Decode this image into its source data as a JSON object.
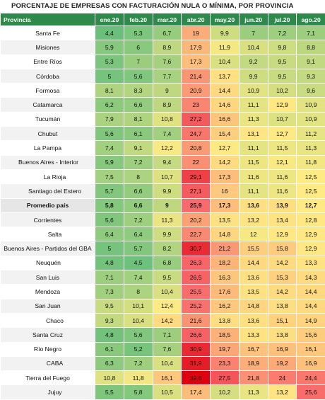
{
  "title": "PORCENTAJE DE EMPRESAS CON FACTURACIÓN NULA O MÍNIMA, POR PROVINCIA",
  "headers": [
    "Provincia",
    "ene.20",
    "feb.20",
    "mar.20",
    "abr.20",
    "may.20",
    "jun.20",
    "jul.20",
    "ago.20"
  ],
  "chart_data": {
    "type": "table",
    "columns": [
      "ene.20",
      "feb.20",
      "mar.20",
      "abr.20",
      "may.20",
      "jun.20",
      "jul.20",
      "ago.20"
    ],
    "rows": [
      {
        "provincia": "Santa Fe",
        "values": [
          "4,4",
          "5,3",
          "6,7",
          "19",
          "9,9",
          "7",
          "7,2",
          "7,1"
        ]
      },
      {
        "provincia": "Misiones",
        "values": [
          "5,9",
          "6",
          "8,9",
          "17,9",
          "11,9",
          "10,4",
          "9,8",
          "8,8"
        ]
      },
      {
        "provincia": "Entre Ríos",
        "values": [
          "5,3",
          "7",
          "7,6",
          "17,3",
          "10,4",
          "9,2",
          "9,5",
          "9,1"
        ]
      },
      {
        "provincia": "Córdoba",
        "values": [
          "5",
          "5,6",
          "7,7",
          "21,4",
          "13,7",
          "9,9",
          "9,5",
          "9,3"
        ]
      },
      {
        "provincia": "Formosa",
        "values": [
          "8,1",
          "8,3",
          "9",
          "20,9",
          "14,4",
          "10,9",
          "10,2",
          "9,6"
        ]
      },
      {
        "provincia": "Catamarca",
        "values": [
          "6,2",
          "6,6",
          "8,9",
          "23",
          "14,6",
          "11,1",
          "12,9",
          "10,9"
        ]
      },
      {
        "provincia": "Tucumán",
        "values": [
          "7,9",
          "8,1",
          "10,8",
          "27,2",
          "16,6",
          "11,3",
          "10,7",
          "10,9"
        ]
      },
      {
        "provincia": "Chubut",
        "values": [
          "5,6",
          "6,1",
          "7,4",
          "24,7",
          "15,4",
          "13,1",
          "12,7",
          "11,2"
        ]
      },
      {
        "provincia": "La Pampa",
        "values": [
          "7,4",
          "9,1",
          "12,2",
          "20,8",
          "12,7",
          "11,1",
          "11,5",
          "11,3"
        ]
      },
      {
        "provincia": "Buenos Aires - Interior",
        "values": [
          "5,9",
          "7,2",
          "9,4",
          "22",
          "14,2",
          "11,5",
          "12,1",
          "11,8"
        ]
      },
      {
        "provincia": "La Rioja",
        "values": [
          "7,5",
          "8",
          "10,7",
          "29,1",
          "17,3",
          "11,6",
          "11,6",
          "12,5"
        ]
      },
      {
        "provincia": "Santiago del Estero",
        "values": [
          "5,7",
          "6,6",
          "9,9",
          "27,1",
          "16",
          "11,1",
          "11,6",
          "12,5"
        ]
      },
      {
        "provincia": "Promedio país",
        "values": [
          "5,8",
          "6,6",
          "9",
          "25,9",
          "17,3",
          "13,6",
          "13,9",
          "12,7"
        ]
      },
      {
        "provincia": "Corrientes",
        "values": [
          "5,6",
          "7,2",
          "11,3",
          "20,2",
          "13,5",
          "13,2",
          "13,4",
          "12,8"
        ]
      },
      {
        "provincia": "Salta",
        "values": [
          "6,4",
          "6,4",
          "9,9",
          "22,7",
          "14,8",
          "12",
          "12,9",
          "12,9"
        ]
      },
      {
        "provincia": "Buenos Aires - Partidos del GBA",
        "values": [
          "5",
          "5,7",
          "8,2",
          "30,7",
          "21,2",
          "15,5",
          "15,8",
          "12,9"
        ]
      },
      {
        "provincia": "Neuquén",
        "values": [
          "4,8",
          "4,5",
          "6,8",
          "26,3",
          "18,2",
          "14,4",
          "14,2",
          "13,3"
        ]
      },
      {
        "provincia": "San Luis",
        "values": [
          "7,1",
          "7,4",
          "9,5",
          "26,5",
          "16,3",
          "13,6",
          "15,3",
          "14,3"
        ]
      },
      {
        "provincia": "Mendoza",
        "values": [
          "7,3",
          "8",
          "10,4",
          "25,5",
          "17,6",
          "13,5",
          "14,2",
          "14,4"
        ]
      },
      {
        "provincia": "San Juan",
        "values": [
          "9,5",
          "10,1",
          "12,4",
          "25,2",
          "16,2",
          "14,8",
          "13,8",
          "14,4"
        ]
      },
      {
        "provincia": "Chaco",
        "values": [
          "9,3",
          "10,4",
          "14,2",
          "21,6",
          "13,8",
          "13,6",
          "15,1",
          "14,9"
        ]
      },
      {
        "provincia": "Santa Cruz",
        "values": [
          "4,8",
          "5,6",
          "7,1",
          "26,6",
          "18,5",
          "13,3",
          "13,8",
          "15,6"
        ]
      },
      {
        "provincia": "Río Negro",
        "values": [
          "6,1",
          "5,2",
          "7,6",
          "30,9",
          "19,7",
          "16,7",
          "16,9",
          "16,1"
        ]
      },
      {
        "provincia": "CABA",
        "values": [
          "6,3",
          "7,2",
          "10,4",
          "31,9",
          "23,3",
          "18,9",
          "19,2",
          "16,9"
        ]
      },
      {
        "provincia": "Tierra del Fuego",
        "values": [
          "10,8",
          "11,8",
          "16,1",
          "39,6",
          "27,5",
          "21,8",
          "24",
          "24,4"
        ]
      },
      {
        "provincia": "Jujuy",
        "values": [
          "5,5",
          "5,8",
          "10,5",
          "17,4",
          "10,2",
          "11,3",
          "13,2",
          "25,6"
        ]
      }
    ],
    "highlight_row": "Promedio país",
    "colors": {
      "header_bg": "#2e8a4a",
      "low": "#63be7b",
      "mid": "#ffeb84",
      "high": "#f8696b",
      "max": "#e0000f"
    }
  }
}
